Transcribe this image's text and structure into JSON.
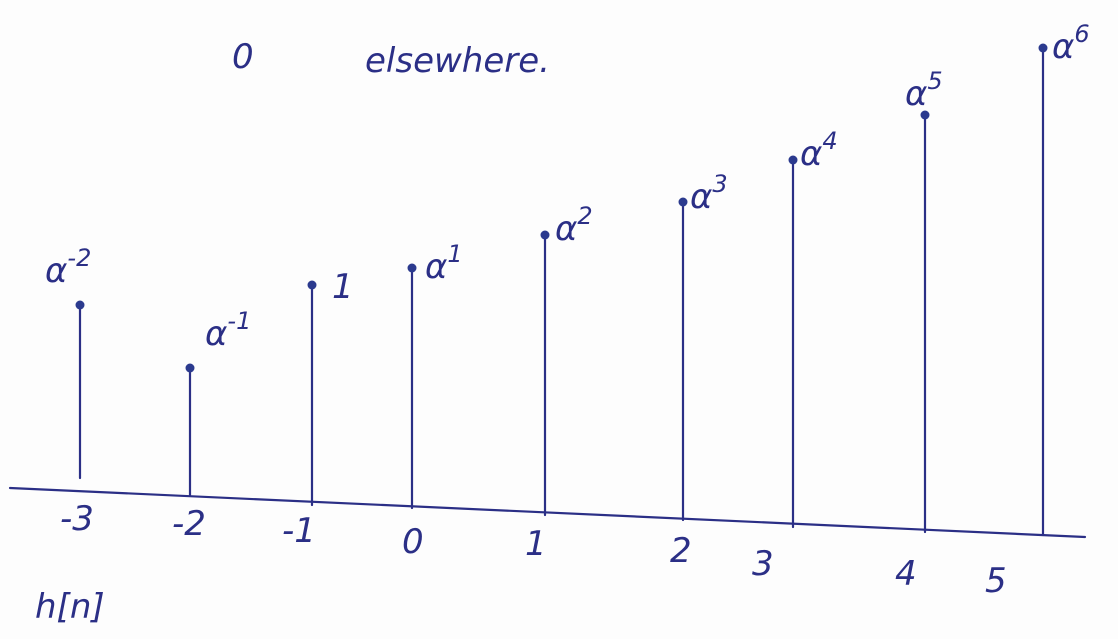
{
  "note": {
    "zero": "0",
    "text": "elsewhere."
  },
  "stems": [
    {
      "n": "-3",
      "base": "α",
      "exp": "-2"
    },
    {
      "n": "-2",
      "base": "α",
      "exp": "-1"
    },
    {
      "n": "-1",
      "base": "1"
    },
    {
      "n": "0",
      "base": "α",
      "exp": "1"
    },
    {
      "n": "1",
      "base": "α",
      "exp": "2"
    },
    {
      "n": "2",
      "base": "α",
      "exp": "3"
    },
    {
      "n": "3",
      "base": "α",
      "exp": "4"
    },
    {
      "n": "4",
      "base": "α",
      "exp": "5"
    },
    {
      "n": "5",
      "base": "α",
      "exp": "6"
    }
  ],
  "caption": "h[n]"
}
